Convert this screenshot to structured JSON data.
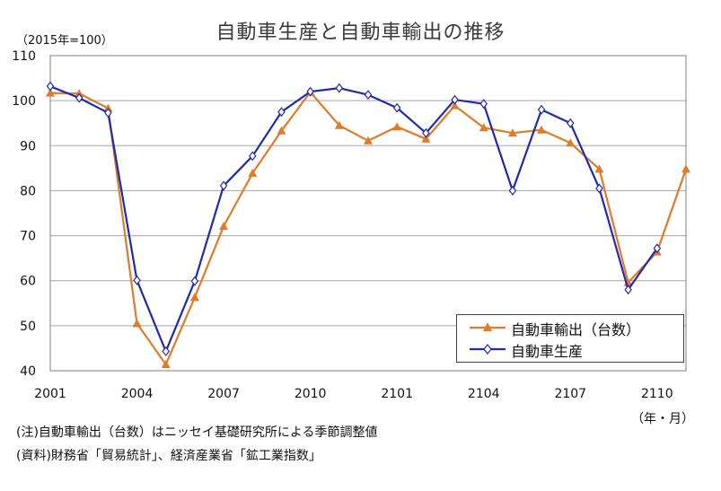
{
  "chart_data": {
    "type": "line",
    "title": "自動車生産と自動車輸出の推移",
    "ylabel": "（2015年=100）",
    "xlabel": "（年・月）",
    "ylim": [
      40,
      110
    ],
    "yticks": [
      "40",
      "50",
      "60",
      "70",
      "80",
      "90",
      "100",
      "110"
    ],
    "x": [
      "2001",
      "2002",
      "2003",
      "2004",
      "2005",
      "2006",
      "2007",
      "2008",
      "2009",
      "2010",
      "2011",
      "2012",
      "2101",
      "2102",
      "2103",
      "2104",
      "2105",
      "2106",
      "2107",
      "2108",
      "2109",
      "2110",
      "2111"
    ],
    "xtick_labels": [
      "2001",
      "2004",
      "2007",
      "2010",
      "2101",
      "2104",
      "2107",
      "2110"
    ],
    "xtick_indices": [
      0,
      3,
      6,
      9,
      12,
      15,
      18,
      21
    ],
    "grid": true,
    "legend_position": "bottom-right",
    "series": [
      {
        "name": "自動車輸出（台数）",
        "color": "#E07B28",
        "marker": "triangle",
        "values": [
          101.7,
          101.6,
          98.3,
          50.5,
          41.4,
          56.3,
          72.1,
          83.9,
          93.3,
          101.9,
          94.5,
          91.1,
          94.2,
          91.5,
          98.9,
          94.0,
          92.8,
          93.5,
          90.6,
          84.8,
          59.6,
          66.4,
          84.8
        ]
      },
      {
        "name": "自動車生産",
        "color": "#1E2AB0",
        "marker": "diamond",
        "values": [
          103.2,
          100.6,
          97.3,
          60.1,
          44.3,
          59.9,
          81.1,
          87.7,
          97.5,
          102.0,
          102.8,
          101.3,
          98.4,
          92.8,
          100.2,
          99.3,
          80.0,
          98.0,
          95.0,
          80.5,
          58.0,
          67.2,
          null
        ]
      }
    ]
  },
  "notes": {
    "note1": "(注)自動車輸出（台数）はニッセイ基礎研究所による季節調整値",
    "note2": "(資料)財務省「貿易統計」、経済産業省「鉱工業指数」"
  }
}
